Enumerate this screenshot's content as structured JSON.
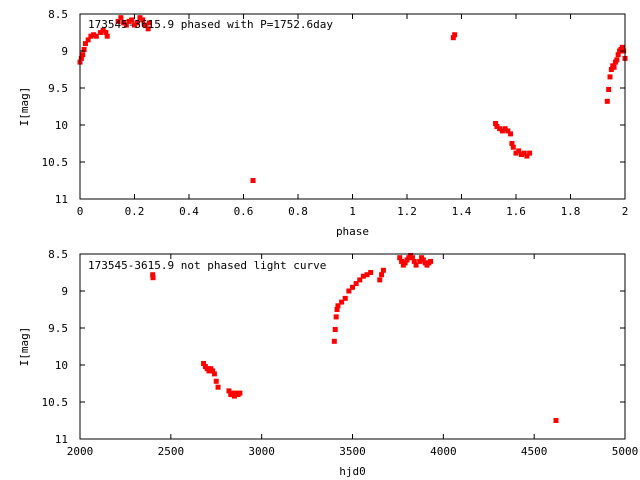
{
  "chart_data": [
    {
      "type": "scatter",
      "title": "173545-3615.9 phased with P=1752.6day",
      "xlabel": "phase",
      "ylabel": "I[mag]",
      "xlim": [
        0,
        2
      ],
      "ylim": [
        11,
        8.5
      ],
      "y_inverted": true,
      "grid": false,
      "color": "#ff0000",
      "xticks": [
        "0",
        "0.2",
        "0.4",
        "0.6",
        "0.8",
        "1",
        "1.2",
        "1.4",
        "1.6",
        "1.8",
        "2"
      ],
      "yticks": [
        "8.5",
        "9",
        "9.5",
        "10",
        "10.5",
        "11"
      ],
      "series": [
        {
          "points": [
            [
              0.0,
              9.15
            ],
            [
              0.005,
              9.1
            ],
            [
              0.01,
              9.05
            ],
            [
              0.015,
              8.98
            ],
            [
              0.02,
              8.9
            ],
            [
              0.03,
              8.85
            ],
            [
              0.04,
              8.8
            ],
            [
              0.05,
              8.78
            ],
            [
              0.06,
              8.8
            ],
            [
              0.075,
              8.75
            ],
            [
              0.085,
              8.72
            ],
            [
              0.095,
              8.75
            ],
            [
              0.1,
              8.8
            ],
            [
              0.14,
              8.6
            ],
            [
              0.15,
              8.55
            ],
            [
              0.16,
              8.62
            ],
            [
              0.17,
              8.65
            ],
            [
              0.18,
              8.6
            ],
            [
              0.19,
              8.58
            ],
            [
              0.2,
              8.65
            ],
            [
              0.21,
              8.62
            ],
            [
              0.22,
              8.55
            ],
            [
              0.23,
              8.58
            ],
            [
              0.24,
              8.65
            ],
            [
              0.25,
              8.7
            ],
            [
              0.255,
              8.62
            ],
            [
              0.635,
              10.75
            ],
            [
              1.37,
              8.82
            ],
            [
              1.375,
              8.78
            ],
            [
              1.525,
              9.98
            ],
            [
              1.53,
              10.02
            ],
            [
              1.54,
              10.05
            ],
            [
              1.55,
              10.08
            ],
            [
              1.56,
              10.05
            ],
            [
              1.57,
              10.08
            ],
            [
              1.58,
              10.12
            ],
            [
              1.585,
              10.25
            ],
            [
              1.59,
              10.3
            ],
            [
              1.6,
              10.38
            ],
            [
              1.61,
              10.35
            ],
            [
              1.62,
              10.4
            ],
            [
              1.63,
              10.38
            ],
            [
              1.64,
              10.42
            ],
            [
              1.65,
              10.38
            ],
            [
              1.935,
              9.68
            ],
            [
              1.94,
              9.52
            ],
            [
              1.945,
              9.35
            ],
            [
              1.95,
              9.25
            ],
            [
              1.955,
              9.2
            ],
            [
              1.96,
              9.22
            ],
            [
              1.965,
              9.15
            ],
            [
              1.97,
              9.12
            ],
            [
              1.975,
              9.05
            ],
            [
              1.98,
              9.0
            ],
            [
              1.985,
              8.98
            ],
            [
              1.99,
              8.95
            ],
            [
              1.995,
              9.0
            ],
            [
              2.0,
              9.1
            ]
          ]
        }
      ]
    },
    {
      "type": "scatter",
      "title": "173545-3615.9 not phased light curve",
      "xlabel": "hjd0",
      "ylabel": "I[mag]",
      "xlim": [
        2000,
        5000
      ],
      "ylim": [
        11,
        8.5
      ],
      "y_inverted": true,
      "grid": false,
      "color": "#ff0000",
      "xticks": [
        "2000",
        "2500",
        "3000",
        "3500",
        "4000",
        "4500",
        "5000"
      ],
      "yticks": [
        "8.5",
        "9",
        "9.5",
        "10",
        "10.5",
        "11"
      ],
      "series": [
        {
          "points": [
            [
              2400,
              8.78
            ],
            [
              2402,
              8.82
            ],
            [
              2680,
              9.98
            ],
            [
              2690,
              10.02
            ],
            [
              2700,
              10.05
            ],
            [
              2710,
              10.08
            ],
            [
              2720,
              10.05
            ],
            [
              2730,
              10.08
            ],
            [
              2740,
              10.12
            ],
            [
              2750,
              10.22
            ],
            [
              2760,
              10.3
            ],
            [
              2820,
              10.35
            ],
            [
              2830,
              10.4
            ],
            [
              2840,
              10.38
            ],
            [
              2850,
              10.42
            ],
            [
              2860,
              10.38
            ],
            [
              2870,
              10.4
            ],
            [
              2880,
              10.38
            ],
            [
              3400,
              9.68
            ],
            [
              3405,
              9.52
            ],
            [
              3410,
              9.35
            ],
            [
              3415,
              9.25
            ],
            [
              3420,
              9.2
            ],
            [
              3440,
              9.15
            ],
            [
              3460,
              9.1
            ],
            [
              3480,
              9.0
            ],
            [
              3500,
              8.95
            ],
            [
              3520,
              8.9
            ],
            [
              3540,
              8.85
            ],
            [
              3560,
              8.8
            ],
            [
              3580,
              8.78
            ],
            [
              3600,
              8.75
            ],
            [
              3650,
              8.85
            ],
            [
              3660,
              8.78
            ],
            [
              3670,
              8.72
            ],
            [
              3760,
              8.55
            ],
            [
              3770,
              8.6
            ],
            [
              3780,
              8.65
            ],
            [
              3790,
              8.62
            ],
            [
              3800,
              8.58
            ],
            [
              3810,
              8.55
            ],
            [
              3820,
              8.52
            ],
            [
              3830,
              8.55
            ],
            [
              3840,
              8.6
            ],
            [
              3850,
              8.65
            ],
            [
              3870,
              8.6
            ],
            [
              3880,
              8.55
            ],
            [
              3890,
              8.58
            ],
            [
              3900,
              8.62
            ],
            [
              3910,
              8.65
            ],
            [
              3920,
              8.62
            ],
            [
              3930,
              8.6
            ],
            [
              4620,
              10.75
            ]
          ]
        }
      ]
    }
  ]
}
